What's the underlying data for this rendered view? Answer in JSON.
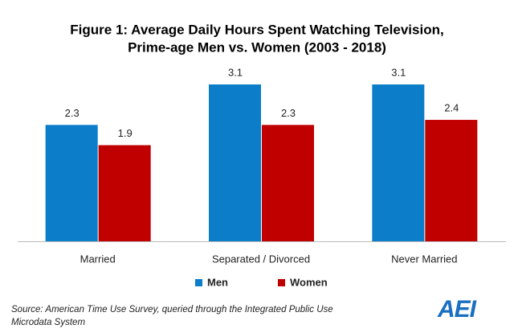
{
  "chart_data": {
    "type": "bar",
    "title": [
      "Figure 1: Average Daily Hours Spent Watching Television,",
      "Prime-age Men vs. Women (2003 - 2018)"
    ],
    "categories": [
      "Married",
      "Separated / Divorced",
      "Never Married"
    ],
    "series": [
      {
        "name": "Men",
        "color": "#0b7dc9",
        "values": [
          2.3,
          3.1,
          3.1
        ]
      },
      {
        "name": "Women",
        "color": "#c00000",
        "values": [
          1.9,
          2.3,
          2.4
        ]
      }
    ],
    "source": [
      "Source: American Time Use Survey, queried through the Integrated Public Use",
      "Microdata System"
    ],
    "logo": "AEI"
  }
}
